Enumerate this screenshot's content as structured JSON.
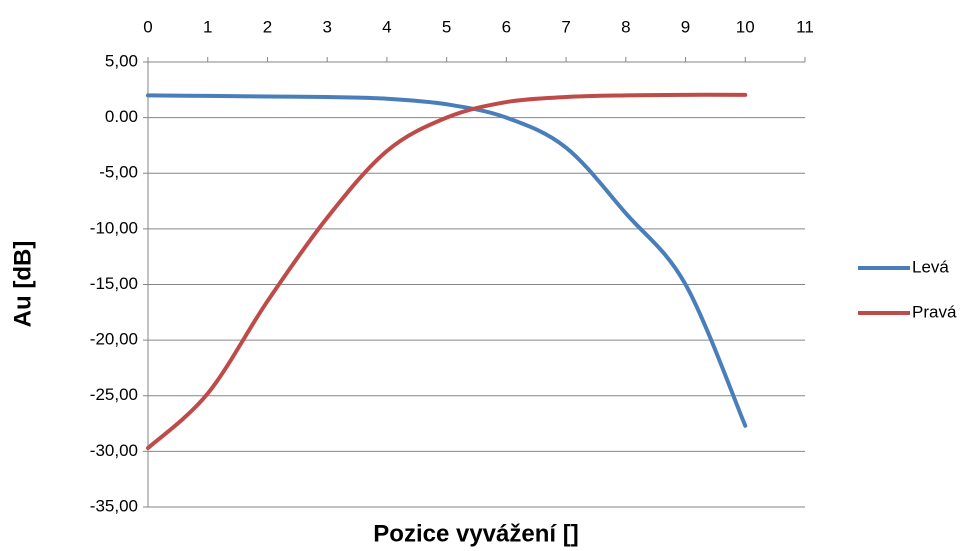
{
  "chart_data": {
    "type": "line",
    "x_label": "Pozice vyvážení []",
    "y_label": "Au [dB]",
    "x": [
      0,
      1,
      2,
      3,
      4,
      5,
      6,
      7,
      8,
      9,
      10
    ],
    "series": [
      {
        "name": "Levá",
        "color": "#4a7ebb",
        "values": [
          2.0,
          1.95,
          1.9,
          1.85,
          1.7,
          1.2,
          0.0,
          -2.7,
          -8.6,
          -15.0,
          -27.7
        ]
      },
      {
        "name": "Pravá",
        "color": "#be4b48",
        "values": [
          -29.7,
          -24.8,
          -16.5,
          -9.0,
          -3.0,
          0.0,
          1.4,
          1.85,
          2.0,
          2.05,
          2.05
        ]
      }
    ],
    "xlim": [
      0,
      11
    ],
    "xticks": [
      0,
      1,
      2,
      3,
      4,
      5,
      6,
      7,
      8,
      9,
      10,
      11
    ],
    "ylim": [
      -35,
      5
    ],
    "yticks": [
      {
        "value": 5,
        "label": "5,00"
      },
      {
        "value": 0,
        "label": "0.00"
      },
      {
        "value": -5,
        "label": "-5,00"
      },
      {
        "value": -10,
        "label": "-10,00"
      },
      {
        "value": -15,
        "label": "-15,00"
      },
      {
        "value": -20,
        "label": "-20,00"
      },
      {
        "value": -25,
        "label": "-25,00"
      },
      {
        "value": -30,
        "label": "-30,00"
      },
      {
        "value": -35,
        "label": "-35,00"
      }
    ],
    "grid": true,
    "legend": "right"
  }
}
